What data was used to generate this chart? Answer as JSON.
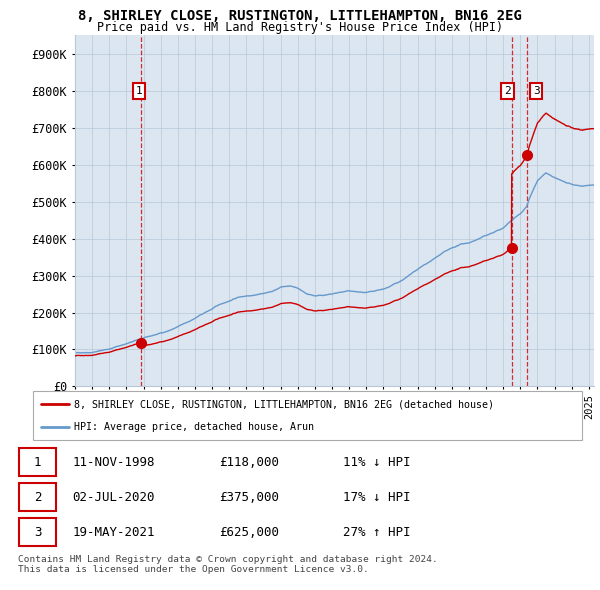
{
  "title_line1": "8, SHIRLEY CLOSE, RUSTINGTON, LITTLEHAMPTON, BN16 2EG",
  "title_line2": "Price paid vs. HM Land Registry's House Price Index (HPI)",
  "ylabel_ticks": [
    "£0",
    "£100K",
    "£200K",
    "£300K",
    "£400K",
    "£500K",
    "£600K",
    "£700K",
    "£800K",
    "£900K"
  ],
  "ytick_values": [
    0,
    100000,
    200000,
    300000,
    400000,
    500000,
    600000,
    700000,
    800000,
    900000
  ],
  "ylim": [
    0,
    950000
  ],
  "xlim_start": 1995.3,
  "xlim_end": 2025.3,
  "sale_dates": [
    1998.87,
    2020.5,
    2021.38
  ],
  "sale_prices": [
    118000,
    375000,
    625000
  ],
  "sale_labels": [
    "1",
    "2",
    "3"
  ],
  "hpi_color": "#6699cc",
  "price_color": "#cc0000",
  "plot_bg_color": "#dce6f1",
  "legend_entry1": "8, SHIRLEY CLOSE, RUSTINGTON, LITTLEHAMPTON, BN16 2EG (detached house)",
  "legend_entry2": "HPI: Average price, detached house, Arun",
  "table_rows": [
    [
      "1",
      "11-NOV-1998",
      "£118,000",
      "11% ↓ HPI"
    ],
    [
      "2",
      "02-JUL-2020",
      "£375,000",
      "17% ↓ HPI"
    ],
    [
      "3",
      "19-MAY-2021",
      "£625,000",
      "27% ↑ HPI"
    ]
  ],
  "footnote": "Contains HM Land Registry data © Crown copyright and database right 2024.\nThis data is licensed under the Open Government Licence v3.0.",
  "background_color": "#ffffff",
  "grid_color": "#b8c8d8",
  "hpi_anchors_t": [
    1995.0,
    1996.0,
    1997.0,
    1998.0,
    1998.87,
    1999.5,
    2000.5,
    2001.5,
    2002.5,
    2003.5,
    2004.5,
    2005.5,
    2006.5,
    2007.0,
    2007.5,
    2008.0,
    2008.5,
    2009.0,
    2009.5,
    2010.0,
    2010.5,
    2011.0,
    2011.5,
    2012.0,
    2012.5,
    2013.0,
    2013.5,
    2014.0,
    2014.5,
    2015.0,
    2015.5,
    2016.0,
    2016.5,
    2017.0,
    2017.5,
    2018.0,
    2018.5,
    2019.0,
    2019.5,
    2020.0,
    2020.5,
    2021.0,
    2021.38,
    2021.5,
    2022.0,
    2022.5,
    2023.0,
    2023.5,
    2024.0,
    2024.5,
    2025.3
  ],
  "hpi_anchors_v": [
    90000,
    95000,
    105000,
    120000,
    132584,
    140000,
    155000,
    175000,
    200000,
    225000,
    245000,
    255000,
    265000,
    275000,
    280000,
    275000,
    260000,
    255000,
    258000,
    260000,
    265000,
    268000,
    265000,
    262000,
    263000,
    268000,
    278000,
    290000,
    305000,
    320000,
    335000,
    350000,
    365000,
    375000,
    385000,
    390000,
    400000,
    410000,
    420000,
    430000,
    451807,
    470000,
    492126,
    510000,
    560000,
    580000,
    565000,
    555000,
    545000,
    540000,
    545000
  ]
}
